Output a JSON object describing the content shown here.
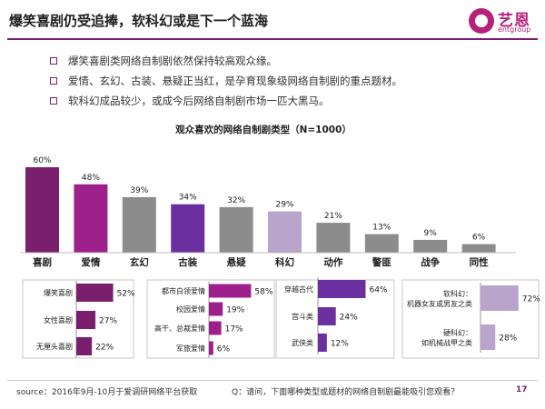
{
  "header": {
    "title": "爆笑喜剧仍受追捧，软科幻或是下一个蓝海",
    "logo_cn": "艺恩",
    "logo_en": "entgroup"
  },
  "bullets": [
    "爆笑喜剧类网络自制剧依然保持较高观众缘。",
    "爱情、玄幻、古装、悬疑正当红，是孕育现象级网络自制剧的重点题材。",
    "软科幻成品较少，或成今后网络自制剧市场一匹大黑马。"
  ],
  "colors": {
    "purple_dark": "#7a1f6e",
    "magenta": "#9d1f8c",
    "gray": "#8c8c8c",
    "violet": "#6b2fa0",
    "lilac": "#b9a4cc"
  },
  "chart_data": [
    {
      "type": "bar",
      "title": "观众喜欢的网络自制剧类型（N=1000）",
      "categories": [
        "喜剧",
        "爱情",
        "玄幻",
        "古装",
        "悬疑",
        "科幻",
        "动作",
        "警匪",
        "战争",
        "同性"
      ],
      "values": [
        60,
        48,
        39,
        34,
        32,
        29,
        21,
        13,
        9,
        6
      ],
      "value_labels": [
        "60%",
        "48%",
        "39%",
        "34%",
        "32%",
        "29%",
        "21%",
        "13%",
        "9%",
        "6%"
      ],
      "bar_colors": [
        "#7a1f6e",
        "#9d1f8c",
        "#8c8c8c",
        "#6b2fa0",
        "#8c8c8c",
        "#b9a4cc",
        "#8c8c8c",
        "#8c8c8c",
        "#8c8c8c",
        "#8c8c8c"
      ],
      "ylim": [
        0,
        60
      ],
      "grid": false
    },
    {
      "type": "bar",
      "orientation": "horizontal",
      "categories": [
        "爆笑喜剧",
        "女性喜剧",
        "无厘头喜剧"
      ],
      "values": [
        52,
        27,
        22
      ],
      "value_labels": [
        "52%",
        "27%",
        "22%"
      ],
      "color": "#7a1f6e"
    },
    {
      "type": "bar",
      "orientation": "horizontal",
      "categories": [
        "都市白领爱情",
        "校园爱情",
        "高干、总裁爱情",
        "军旅爱情"
      ],
      "values": [
        58,
        19,
        17,
        6
      ],
      "value_labels": [
        "58%",
        "19%",
        "17%",
        "6%"
      ],
      "color": "#9d1f8c"
    },
    {
      "type": "bar",
      "orientation": "horizontal",
      "categories": [
        "穿越古代",
        "宫斗类",
        "武侠类"
      ],
      "values": [
        64,
        24,
        12
      ],
      "value_labels": [
        "64%",
        "24%",
        "12%"
      ],
      "color": "#6b2fa0"
    },
    {
      "type": "bar",
      "orientation": "horizontal",
      "categories": [
        [
          "软科幻：",
          "机器女友或男友之类"
        ],
        [
          "硬科幻：",
          "如机械战甲之类"
        ]
      ],
      "values": [
        72,
        28
      ],
      "value_labels": [
        "72%",
        "28%"
      ],
      "color": "#b9a4cc"
    }
  ],
  "footer": {
    "source": "source：2016年9月-10月于爱调研网络平台获取",
    "question": "Q：请问，下面哪种类型或题材的网络自制剧最能吸引您观看？",
    "page": "17"
  }
}
